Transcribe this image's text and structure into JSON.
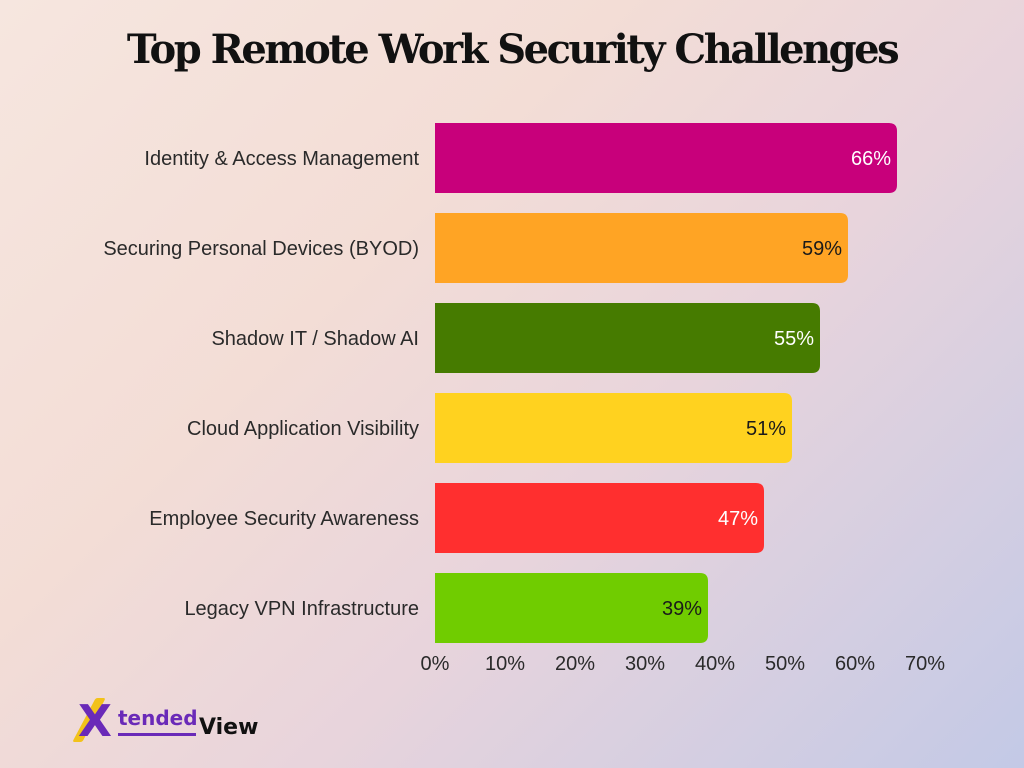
{
  "chart_data": {
    "type": "bar",
    "orientation": "horizontal",
    "title": "Top Remote Work Security Challenges",
    "categories": [
      "Identity & Access Management",
      "Securing Personal Devices (BYOD)",
      "Shadow IT / Shadow AI",
      "Cloud Application Visibility",
      "Employee Security Awareness",
      "Legacy VPN Infrastructure"
    ],
    "values": [
      66,
      59,
      55,
      51,
      47,
      39
    ],
    "value_labels": [
      "66%",
      "59%",
      "55%",
      "51%",
      "47%",
      "39%"
    ],
    "colors": [
      "#c8007b",
      "#ffa424",
      "#467b00",
      "#ffd21f",
      "#ff2f2f",
      "#70cc00"
    ],
    "label_colors": [
      "#ffffff",
      "#1a1a1a",
      "#ffffff",
      "#1a1a1a",
      "#ffffff",
      "#1a1a1a"
    ],
    "xlim": [
      0,
      70
    ],
    "xticks": [
      0,
      10,
      20,
      30,
      40,
      50,
      60,
      70
    ],
    "xtick_labels": [
      "0%",
      "10%",
      "20%",
      "30%",
      "40%",
      "50%",
      "60%",
      "70%"
    ],
    "xlabel": "",
    "ylabel": "",
    "grid": false,
    "legend": "none"
  },
  "logo": {
    "mark": "X",
    "word_part1": "tended",
    "word_part2": "View"
  }
}
